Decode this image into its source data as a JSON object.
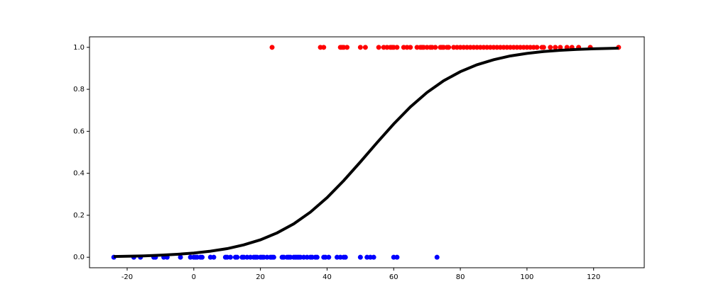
{
  "chart_data": {
    "type": "scatter",
    "xlim": [
      -31.3,
      135.2
    ],
    "ylim": [
      -0.05,
      1.05
    ],
    "xticks": [
      -20,
      0,
      20,
      40,
      60,
      80,
      100,
      120
    ],
    "yticks": [
      {
        "value": 0,
        "label": "0.0"
      },
      0.2,
      0.4,
      0.6,
      0.8,
      {
        "value": 1,
        "label": "1.0"
      }
    ],
    "series": [
      {
        "type": "scatter",
        "color": "#0000ff",
        "x": [
          -24,
          -18,
          -16,
          -12,
          -11.5,
          -9,
          -8,
          -4,
          -1,
          0,
          0.5,
          1,
          2,
          2.5,
          5,
          6,
          9.5,
          10,
          11,
          12.5,
          13,
          14.5,
          15,
          16,
          17,
          18,
          18.5,
          19,
          20,
          20.5,
          21,
          22,
          23,
          23.5,
          24,
          26.5,
          27,
          28,
          28.5,
          29,
          30,
          30.5,
          31,
          31.5,
          32,
          33,
          34,
          35,
          35.5,
          36.5,
          37,
          39,
          39.5,
          40.5,
          43,
          44,
          45,
          45.5,
          50,
          52,
          53,
          54,
          60,
          61,
          73
        ],
        "values": [
          0,
          0,
          0,
          0,
          0,
          0,
          0,
          0,
          0,
          0,
          0,
          0,
          0,
          0,
          0,
          0,
          0,
          0,
          0,
          0,
          0,
          0,
          0,
          0,
          0,
          0,
          0,
          0,
          0,
          0,
          0,
          0,
          0,
          0,
          0,
          0,
          0,
          0,
          0,
          0,
          0,
          0,
          0,
          0,
          0,
          0,
          0,
          0,
          0,
          0,
          0,
          0,
          0,
          0,
          0,
          0,
          0,
          0,
          0,
          0,
          0,
          0,
          0,
          0,
          0
        ]
      },
      {
        "type": "scatter",
        "color": "#ff0000",
        "x": [
          23.5,
          38,
          39,
          44,
          44.5,
          45,
          46,
          50,
          51.5,
          55.5,
          57,
          58,
          59,
          59.5,
          60,
          61,
          63,
          64,
          65,
          67,
          68,
          68.5,
          69,
          70,
          71,
          71.5,
          72.5,
          74,
          74.5,
          75,
          76,
          76.5,
          78,
          79,
          80,
          81,
          82,
          83,
          84,
          85,
          86,
          87,
          88,
          89,
          90,
          91,
          92,
          93,
          94,
          95,
          96,
          97,
          98,
          99,
          100,
          101,
          102,
          103,
          104.5,
          105,
          107,
          108.5,
          110,
          112,
          113.5,
          115.5,
          119,
          127.5
        ],
        "values": [
          1,
          1,
          1,
          1,
          1,
          1,
          1,
          1,
          1,
          1,
          1,
          1,
          1,
          1,
          1,
          1,
          1,
          1,
          1,
          1,
          1,
          1,
          1,
          1,
          1,
          1,
          1,
          1,
          1,
          1,
          1,
          1,
          1,
          1,
          1,
          1,
          1,
          1,
          1,
          1,
          1,
          1,
          1,
          1,
          1,
          1,
          1,
          1,
          1,
          1,
          1,
          1,
          1,
          1,
          1,
          1,
          1,
          1,
          1,
          1,
          1,
          1,
          1,
          1,
          1,
          1,
          1,
          1
        ]
      },
      {
        "type": "line",
        "color": "#000000",
        "x": [
          -24,
          -20,
          -15,
          -10,
          -5,
          0,
          5,
          10,
          15,
          20,
          25,
          30,
          35,
          40,
          45,
          50,
          55,
          60,
          65,
          70,
          75,
          80,
          85,
          90,
          95,
          100,
          105,
          110,
          115,
          120,
          127.5
        ],
        "values": [
          0.0035,
          0.0047,
          0.0067,
          0.0097,
          0.014,
          0.02,
          0.029,
          0.041,
          0.059,
          0.083,
          0.116,
          0.159,
          0.215,
          0.284,
          0.365,
          0.454,
          0.546,
          0.635,
          0.716,
          0.785,
          0.841,
          0.884,
          0.917,
          0.941,
          0.959,
          0.971,
          0.98,
          0.986,
          0.99,
          0.993,
          0.996
        ]
      }
    ]
  }
}
